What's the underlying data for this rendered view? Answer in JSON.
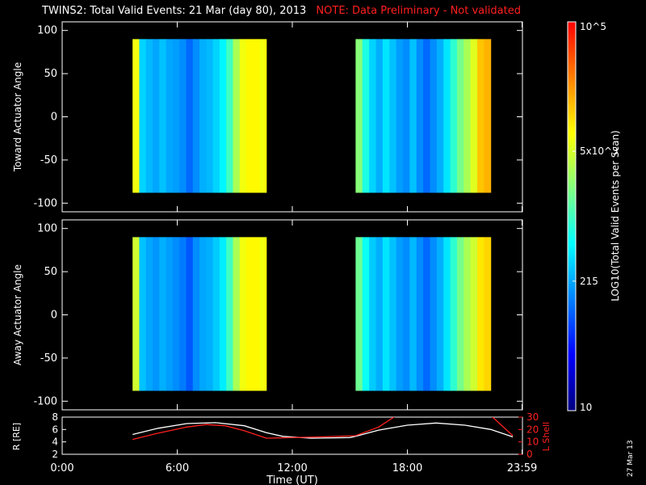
{
  "header": {
    "title": "TWINS2: Total Valid Events: 21 Mar (day  80), 2013",
    "note": "NOTE: Data Preliminary - Not validated"
  },
  "footer": {
    "stamp": "27 Mar 13"
  },
  "chart_data": [
    {
      "type": "heatmap",
      "panel": "top",
      "ylabel": "Toward Actuator Angle",
      "ylim": [
        -110,
        110
      ],
      "yticks": [
        100,
        50,
        0,
        -50,
        -100
      ],
      "x_unit": "hours UT",
      "xlim": [
        0,
        24
      ],
      "blocks": [
        {
          "x_range": [
            3.67,
            10.65
          ],
          "y_range": [
            -88,
            90
          ],
          "column_levels": [
            0.7,
            0.38,
            0.35,
            0.33,
            0.36,
            0.33,
            0.32,
            0.3,
            0.26,
            0.3,
            0.34,
            0.35,
            0.38,
            0.42,
            0.5,
            0.62,
            0.7,
            0.72,
            0.72,
            0.7
          ]
        },
        {
          "x_range": [
            15.3,
            22.35
          ],
          "y_range": [
            -88,
            90
          ],
          "column_levels": [
            0.58,
            0.46,
            0.38,
            0.34,
            0.4,
            0.36,
            0.32,
            0.3,
            0.36,
            0.3,
            0.26,
            0.3,
            0.34,
            0.4,
            0.48,
            0.56,
            0.62,
            0.68,
            0.78,
            0.8
          ]
        }
      ]
    },
    {
      "type": "heatmap",
      "panel": "bottom",
      "ylabel": "Away Actuator Angle",
      "ylim": [
        -110,
        110
      ],
      "yticks": [
        100,
        50,
        0,
        -50,
        -100
      ],
      "x_unit": "hours UT",
      "xlim": [
        0,
        24
      ],
      "blocks": [
        {
          "x_range": [
            3.67,
            10.65
          ],
          "y_range": [
            -88,
            90
          ],
          "column_levels": [
            0.66,
            0.36,
            0.33,
            0.31,
            0.34,
            0.32,
            0.3,
            0.28,
            0.24,
            0.3,
            0.33,
            0.34,
            0.37,
            0.41,
            0.5,
            0.62,
            0.7,
            0.72,
            0.72,
            0.7
          ]
        },
        {
          "x_range": [
            15.3,
            22.35
          ],
          "y_range": [
            -88,
            90
          ],
          "column_levels": [
            0.55,
            0.44,
            0.37,
            0.34,
            0.4,
            0.36,
            0.32,
            0.3,
            0.35,
            0.3,
            0.26,
            0.3,
            0.34,
            0.4,
            0.48,
            0.56,
            0.62,
            0.66,
            0.74,
            0.76
          ]
        }
      ]
    },
    {
      "type": "line",
      "panel": "ephemeris",
      "xlabel": "Time (UT)",
      "xticks": [
        "0:00",
        "6:00",
        "12:00",
        "18:00",
        "23:59"
      ],
      "xtick_hours": [
        0,
        6,
        12,
        18,
        23.98
      ],
      "left_axis": {
        "label": "R [RE]",
        "ylim": [
          2,
          8
        ],
        "ticks": [
          2,
          4,
          6,
          8
        ]
      },
      "right_axis": {
        "label": "L Shell",
        "ylim": [
          0,
          30
        ],
        "ticks": [
          0,
          10,
          20,
          30
        ],
        "color": "#ff2020"
      },
      "series": [
        {
          "axis": "left",
          "color": "#ffffff",
          "x": [
            3.67,
            5,
            6.5,
            8,
            9.5,
            10.65,
            11.5,
            13,
            15,
            15.3,
            16.5,
            18,
            19.5,
            21,
            22.35,
            23.5
          ],
          "y": [
            5.2,
            6.2,
            6.95,
            7.1,
            6.6,
            5.5,
            4.9,
            4.6,
            4.7,
            4.9,
            5.9,
            6.7,
            7.05,
            6.7,
            6.0,
            4.8
          ]
        },
        {
          "axis": "right",
          "color": "#ff2020",
          "x": [
            3.67,
            5,
            6.5,
            7.5,
            8.5,
            9.5,
            10.65,
            12,
            13.5,
            15.3,
            16.5,
            17.5,
            22.3,
            23.5
          ],
          "y": [
            12,
            17,
            22,
            24,
            23,
            19,
            13,
            13.5,
            14,
            15,
            22,
            32,
            32,
            15
          ]
        }
      ]
    },
    {
      "type": "colorbar",
      "label": "LOG10(Total Valid Events per Scan)",
      "tick_labels": [
        "10",
        "215",
        "5x10^3",
        "10^5"
      ],
      "tick_levels": [
        0,
        0.333,
        0.667,
        1.0
      ],
      "colors": [
        "#000080",
        "#0000ff",
        "#0080ff",
        "#00ffff",
        "#80ff80",
        "#ffff00",
        "#ff8000",
        "#ff0000"
      ]
    }
  ]
}
